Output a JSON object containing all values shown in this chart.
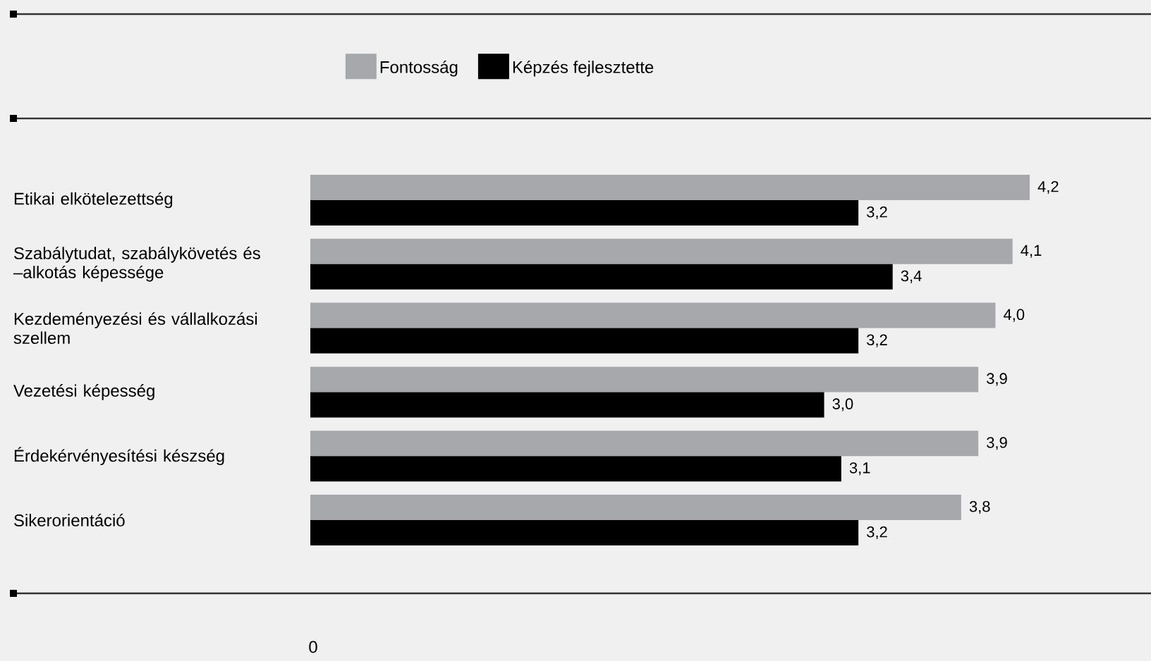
{
  "chart_data": {
    "type": "bar",
    "orientation": "horizontal",
    "legend": "top",
    "categories": [
      "Etikai elkötelezettség",
      "Szabálytudat, szabálykövetés és –alkotás képessége",
      "Kezdeményezési és vállalkozási szellem",
      "Vezetési képesség",
      "Érdekérvényesítési készség",
      "Sikerorientáció"
    ],
    "series": [
      {
        "name": "Fontosság",
        "color": "#a7a8ab",
        "values": [
          4.2,
          4.1,
          4.0,
          3.9,
          3.9,
          3.8
        ],
        "value_labels": [
          "4,2",
          "4,1",
          "4,0",
          "3,9",
          "3,9",
          "3,8"
        ]
      },
      {
        "name": "Képzés fejlesztette",
        "color": "#000000",
        "values": [
          3.2,
          3.4,
          3.2,
          3.0,
          3.1,
          3.2
        ],
        "value_labels": [
          "3,2",
          "3,4",
          "3,2",
          "3,0",
          "3,1",
          "3,2"
        ]
      }
    ],
    "annotations": [
      "0"
    ]
  }
}
